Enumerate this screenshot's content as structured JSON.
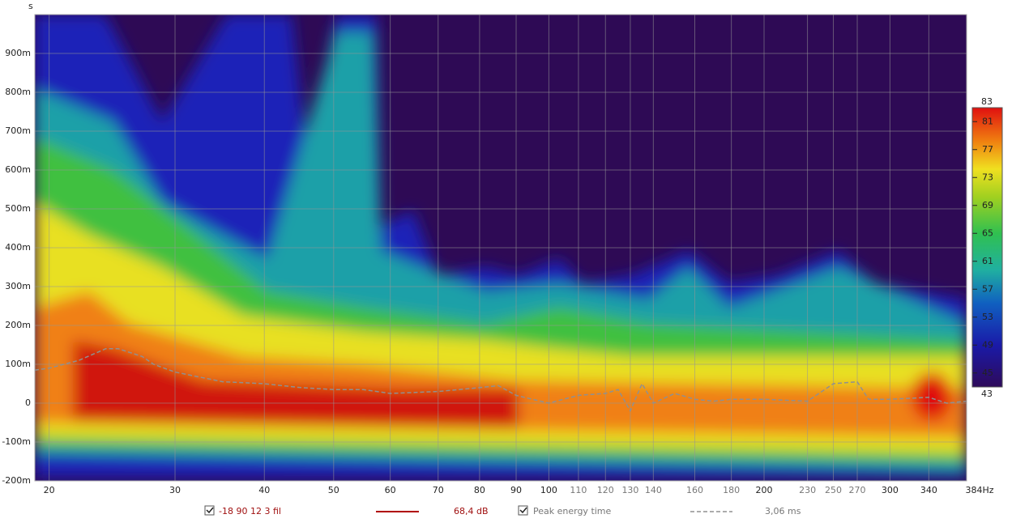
{
  "chart_data": {
    "type": "spectrogram",
    "y_unit": "s",
    "xscale": "log",
    "grid": true,
    "xlim": [
      19.1,
      384
    ],
    "ylim": [
      -0.2,
      1.0
    ],
    "xticks": [
      20,
      30,
      40,
      50,
      60,
      70,
      80,
      90,
      100,
      110,
      120,
      130,
      140,
      160,
      180,
      200,
      230,
      250,
      270,
      300,
      340,
      {
        "value": 384,
        "label": "384Hz"
      }
    ],
    "minor_xticks": [
      110,
      120,
      130,
      140,
      160,
      180,
      230,
      250,
      270
    ],
    "yticks": [
      {
        "value": -0.2,
        "label": "-200m"
      },
      {
        "value": -0.1,
        "label": "-100m"
      },
      0,
      {
        "value": 0.1,
        "label": "100m"
      },
      {
        "value": 0.2,
        "label": "200m"
      },
      {
        "value": 0.3,
        "label": "300m"
      },
      {
        "value": 0.4,
        "label": "400m"
      },
      {
        "value": 0.5,
        "label": "500m"
      },
      {
        "value": 0.6,
        "label": "600m"
      },
      {
        "value": 0.7,
        "label": "700m"
      },
      {
        "value": 0.8,
        "label": "800m"
      },
      {
        "value": 0.9,
        "label": "900m"
      }
    ],
    "colorbar": {
      "lim": [
        43,
        83
      ],
      "ticks": [
        43,
        45,
        49,
        53,
        57,
        61,
        65,
        69,
        73,
        77,
        81,
        83
      ]
    },
    "measurement": {
      "name": "-18 90 12 3 fil",
      "color": "#b00000",
      "readout": "68,4 dB"
    },
    "series": [
      {
        "name": "Peak energy time",
        "color": "#909090",
        "readout": "3,06 ms",
        "x": [
          19.1,
          20,
          22,
          24,
          25,
          27,
          28,
          30,
          35,
          40,
          45,
          50,
          55,
          60,
          70,
          80,
          85,
          90,
          100,
          110,
          120,
          125,
          130,
          135,
          140,
          150,
          160,
          170,
          180,
          200,
          230,
          250,
          270,
          280,
          300,
          340,
          360,
          384
        ],
        "values": [
          0.085,
          0.09,
          0.11,
          0.14,
          0.14,
          0.12,
          0.1,
          0.08,
          0.055,
          0.05,
          0.04,
          0.035,
          0.035,
          0.025,
          0.03,
          0.04,
          0.045,
          0.02,
          0.0,
          0.02,
          0.025,
          0.035,
          -0.02,
          0.05,
          0.0,
          0.025,
          0.01,
          0.005,
          0.01,
          0.01,
          0.005,
          0.05,
          0.055,
          0.01,
          0.01,
          0.015,
          0.0,
          0.005
        ]
      }
    ]
  }
}
